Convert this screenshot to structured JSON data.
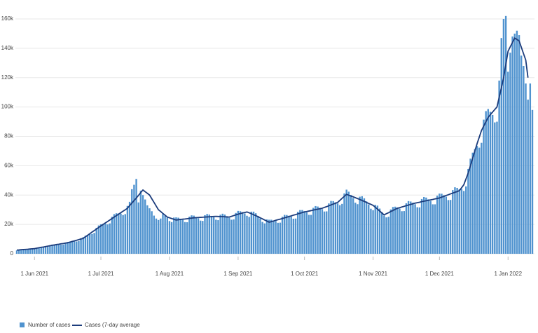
{
  "chart_data": {
    "type": "bar",
    "x": [
      "2021-05-24",
      "2021-05-25",
      "2021-05-26",
      "2021-05-27",
      "2021-05-28",
      "2021-05-29",
      "2021-05-30",
      "2021-05-31",
      "2021-06-01",
      "2021-06-02",
      "2021-06-03",
      "2021-06-04",
      "2021-06-05",
      "2021-06-06",
      "2021-06-07",
      "2021-06-08",
      "2021-06-09",
      "2021-06-10",
      "2021-06-11",
      "2021-06-12",
      "2021-06-13",
      "2021-06-14",
      "2021-06-15",
      "2021-06-16",
      "2021-06-17",
      "2021-06-18",
      "2021-06-19",
      "2021-06-20",
      "2021-06-21",
      "2021-06-22",
      "2021-06-23",
      "2021-06-24",
      "2021-06-25",
      "2021-06-26",
      "2021-06-27",
      "2021-06-28",
      "2021-06-29",
      "2021-06-30",
      "2021-07-01",
      "2021-07-02",
      "2021-07-03",
      "2021-07-04",
      "2021-07-05",
      "2021-07-06",
      "2021-07-07",
      "2021-07-08",
      "2021-07-09",
      "2021-07-10",
      "2021-07-11",
      "2021-07-12",
      "2021-07-13",
      "2021-07-14",
      "2021-07-15",
      "2021-07-16",
      "2021-07-17",
      "2021-07-18",
      "2021-07-19",
      "2021-07-20",
      "2021-07-21",
      "2021-07-22",
      "2021-07-23",
      "2021-07-24",
      "2021-07-25",
      "2021-07-26",
      "2021-07-27",
      "2021-07-28",
      "2021-07-29",
      "2021-07-30",
      "2021-07-31",
      "2021-08-01",
      "2021-08-02",
      "2021-08-03",
      "2021-08-04",
      "2021-08-05",
      "2021-08-06",
      "2021-08-07",
      "2021-08-08",
      "2021-08-09",
      "2021-08-10",
      "2021-08-11",
      "2021-08-12",
      "2021-08-13",
      "2021-08-14",
      "2021-08-15",
      "2021-08-16",
      "2021-08-17",
      "2021-08-18",
      "2021-08-19",
      "2021-08-20",
      "2021-08-21",
      "2021-08-22",
      "2021-08-23",
      "2021-08-24",
      "2021-08-25",
      "2021-08-26",
      "2021-08-27",
      "2021-08-28",
      "2021-08-29",
      "2021-08-30",
      "2021-08-31",
      "2021-09-01",
      "2021-09-02",
      "2021-09-03",
      "2021-09-04",
      "2021-09-05",
      "2021-09-06",
      "2021-09-07",
      "2021-09-08",
      "2021-09-09",
      "2021-09-10",
      "2021-09-11",
      "2021-09-12",
      "2021-09-13",
      "2021-09-14",
      "2021-09-15",
      "2021-09-16",
      "2021-09-17",
      "2021-09-18",
      "2021-09-19",
      "2021-09-20",
      "2021-09-21",
      "2021-09-22",
      "2021-09-23",
      "2021-09-24",
      "2021-09-25",
      "2021-09-26",
      "2021-09-27",
      "2021-09-28",
      "2021-09-29",
      "2021-09-30",
      "2021-10-01",
      "2021-10-02",
      "2021-10-03",
      "2021-10-04",
      "2021-10-05",
      "2021-10-06",
      "2021-10-07",
      "2021-10-08",
      "2021-10-09",
      "2021-10-10",
      "2021-10-11",
      "2021-10-12",
      "2021-10-13",
      "2021-10-14",
      "2021-10-15",
      "2021-10-16",
      "2021-10-17",
      "2021-10-18",
      "2021-10-19",
      "2021-10-20",
      "2021-10-21",
      "2021-10-22",
      "2021-10-23",
      "2021-10-24",
      "2021-10-25",
      "2021-10-26",
      "2021-10-27",
      "2021-10-28",
      "2021-10-29",
      "2021-10-30",
      "2021-10-31",
      "2021-11-01",
      "2021-11-02",
      "2021-11-03",
      "2021-11-04",
      "2021-11-05",
      "2021-11-06",
      "2021-11-07",
      "2021-11-08",
      "2021-11-09",
      "2021-11-10",
      "2021-11-11",
      "2021-11-12",
      "2021-11-13",
      "2021-11-14",
      "2021-11-15",
      "2021-11-16",
      "2021-11-17",
      "2021-11-18",
      "2021-11-19",
      "2021-11-20",
      "2021-11-21",
      "2021-11-22",
      "2021-11-23",
      "2021-11-24",
      "2021-11-25",
      "2021-11-26",
      "2021-11-27",
      "2021-11-28",
      "2021-11-29",
      "2021-11-30",
      "2021-12-01",
      "2021-12-02",
      "2021-12-03",
      "2021-12-04",
      "2021-12-05",
      "2021-12-06",
      "2021-12-07",
      "2021-12-08",
      "2021-12-09",
      "2021-12-10",
      "2021-12-11",
      "2021-12-12",
      "2021-12-13",
      "2021-12-14",
      "2021-12-15",
      "2021-12-16",
      "2021-12-17",
      "2021-12-18",
      "2021-12-19",
      "2021-12-20",
      "2021-12-21",
      "2021-12-22",
      "2021-12-23",
      "2021-12-24",
      "2021-12-25",
      "2021-12-26",
      "2021-12-27",
      "2021-12-28",
      "2021-12-29",
      "2021-12-30",
      "2021-12-31",
      "2022-01-01",
      "2022-01-02",
      "2022-01-03",
      "2022-01-04",
      "2022-01-05",
      "2022-01-06",
      "2022-01-07",
      "2022-01-08",
      "2022-01-09",
      "2022-01-10",
      "2022-01-11",
      "2022-01-12"
    ],
    "xlim": [
      "2021-05-24",
      "2022-01-12"
    ],
    "xticks": [
      {
        "value": "2021-06-01",
        "label": "1 Jun 2021"
      },
      {
        "value": "2021-07-01",
        "label": "1 Jul 2021"
      },
      {
        "value": "2021-08-01",
        "label": "1 Aug 2021"
      },
      {
        "value": "2021-09-01",
        "label": "1 Sep 2021"
      },
      {
        "value": "2021-10-01",
        "label": "1 Oct 2021"
      },
      {
        "value": "2021-11-01",
        "label": "1 Nov 2021"
      },
      {
        "value": "2021-12-01",
        "label": "1 Dec 2021"
      },
      {
        "value": "2022-01-01",
        "label": "1 Jan 2022"
      }
    ],
    "ylim": [
      0,
      160000
    ],
    "yticks": [
      0,
      {
        "value": 20000,
        "label": "20k"
      },
      {
        "value": 40000,
        "label": "40k"
      },
      {
        "value": 60000,
        "label": "60k"
      },
      {
        "value": 80000,
        "label": "80k"
      },
      {
        "value": 100000,
        "label": "100k"
      },
      {
        "value": 120000,
        "label": "120k"
      },
      {
        "value": 140000,
        "label": "140k"
      },
      {
        "value": 160000,
        "label": "160k"
      }
    ],
    "grid": true,
    "series": [
      {
        "name": "Number of cases",
        "type": "bar",
        "color": "#5093cf",
        "values": [
          2300,
          2700,
          3000,
          3100,
          3100,
          3000,
          3000,
          3100,
          3700,
          4100,
          4300,
          4500,
          4500,
          4500,
          4700,
          5800,
          6300,
          6400,
          6400,
          6400,
          6200,
          6300,
          7700,
          8100,
          8400,
          8600,
          8600,
          8400,
          8600,
          10600,
          11300,
          12300,
          12900,
          13400,
          13500,
          14200,
          17700,
          19300,
          20100,
          20400,
          20600,
          20000,
          20700,
          25200,
          27000,
          27600,
          27500,
          27400,
          26400,
          27000,
          32600,
          35400,
          44000,
          47000,
          51000,
          35000,
          43000,
          40000,
          37000,
          33000,
          31000,
          29000,
          26000,
          24000,
          23000,
          24000,
          27000,
          26000,
          24500,
          22300,
          21600,
          24700,
          24800,
          24600,
          23900,
          23100,
          21600,
          21500,
          25300,
          26200,
          26000,
          25100,
          24200,
          22600,
          22400,
          26300,
          27100,
          26700,
          25800,
          24900,
          23200,
          22900,
          26600,
          27300,
          26700,
          25600,
          24500,
          23200,
          23400,
          27800,
          29200,
          29000,
          28400,
          27500,
          25900,
          25100,
          28700,
          28700,
          27600,
          25800,
          24000,
          21700,
          20700,
          23400,
          23200,
          23200,
          22700,
          22300,
          21100,
          21200,
          25200,
          26500,
          26400,
          25900,
          25300,
          23900,
          24000,
          28600,
          29800,
          29800,
          29100,
          28200,
          26500,
          26500,
          31300,
          32500,
          32200,
          31300,
          30400,
          28800,
          28900,
          34300,
          36000,
          35900,
          35100,
          34300,
          33100,
          34000,
          41100,
          43700,
          42300,
          40100,
          38000,
          34800,
          33800,
          38900,
          39200,
          37800,
          35700,
          33600,
          30700,
          29700,
          33300,
          32800,
          30800,
          28400,
          26000,
          24800,
          25200,
          30200,
          31900,
          32100,
          31600,
          30800,
          29000,
          29100,
          34400,
          35900,
          35600,
          34800,
          33800,
          31700,
          31600,
          37300,
          38700,
          38300,
          37100,
          36000,
          33700,
          33700,
          39600,
          41000,
          40900,
          39900,
          38900,
          36600,
          36700,
          43400,
          45300,
          44900,
          43900,
          44100,
          42800,
          45900,
          57800,
          64800,
          68900,
          71400,
          73500,
          72300,
          75600,
          91400,
          97200,
          98600,
          96700,
          94600,
          89500,
          90000,
          118000,
          147000,
          160000,
          162000,
          124000,
          137000,
          148000,
          150000,
          152000,
          149000,
          135000,
          128000,
          116000,
          105000,
          116000,
          98000
        ]
      },
      {
        "name": "Cases (7-day average",
        "type": "line",
        "color": "#1c3c7c",
        "values": [
          2500,
          2600,
          2800,
          2900,
          3000,
          3100,
          3300,
          3400,
          3500,
          3800,
          4100,
          4400,
          4600,
          4900,
          5200,
          5500,
          5800,
          6000,
          6300,
          6500,
          6800,
          7000,
          7300,
          7500,
          7900,
          8400,
          8800,
          9200,
          9600,
          10100,
          10500,
          11600,
          12600,
          13700,
          14800,
          15800,
          16900,
          17900,
          19000,
          20000,
          21000,
          22000,
          23000,
          24000,
          25000,
          26000,
          27000,
          28000,
          29000,
          30000,
          31000,
          32800,
          34500,
          36300,
          38000,
          39800,
          41700,
          43500,
          42300,
          41200,
          40000,
          37500,
          35000,
          32500,
          30000,
          28800,
          27500,
          26300,
          25000,
          24500,
          24000,
          23500,
          23000,
          23200,
          23400,
          23600,
          23700,
          23900,
          24100,
          24300,
          24500,
          24600,
          24700,
          24800,
          24900,
          25000,
          25100,
          25200,
          25300,
          25400,
          25500,
          25400,
          25300,
          25300,
          25200,
          25100,
          25000,
          25500,
          26000,
          26500,
          27000,
          27400,
          27800,
          28100,
          28500,
          27900,
          27300,
          26600,
          26000,
          25300,
          24500,
          23800,
          23000,
          22300,
          21500,
          21900,
          22300,
          22800,
          23200,
          23600,
          24000,
          24500,
          24900,
          25400,
          25800,
          26300,
          26700,
          27200,
          27600,
          28100,
          28500,
          28800,
          29100,
          29400,
          29800,
          30100,
          30400,
          30700,
          31000,
          31600,
          32100,
          32700,
          33300,
          33900,
          34400,
          35000,
          36400,
          37800,
          39100,
          40500,
          39900,
          39300,
          38800,
          38200,
          37600,
          37000,
          36300,
          35700,
          35000,
          34300,
          33700,
          33000,
          31700,
          30400,
          29100,
          27800,
          26500,
          27300,
          28000,
          28800,
          29500,
          30300,
          31000,
          31400,
          31900,
          32300,
          32800,
          33200,
          33600,
          34100,
          34500,
          34800,
          35100,
          35500,
          35800,
          36100,
          36400,
          36700,
          37000,
          37400,
          37700,
          38000,
          38600,
          39100,
          39700,
          40200,
          40800,
          41300,
          41900,
          42400,
          43000,
          45000,
          47000,
          51000,
          55000,
          60000,
          65000,
          70000,
          75000,
          79500,
          84000,
          87000,
          90000,
          93000,
          94800,
          96500,
          98300,
          100000,
          106700,
          113300,
          120000,
          129000,
          138000,
          141000,
          144000,
          147000,
          146000,
          145000,
          140700,
          136300,
          132000,
          120000,
          null,
          null
        ]
      }
    ]
  }
}
